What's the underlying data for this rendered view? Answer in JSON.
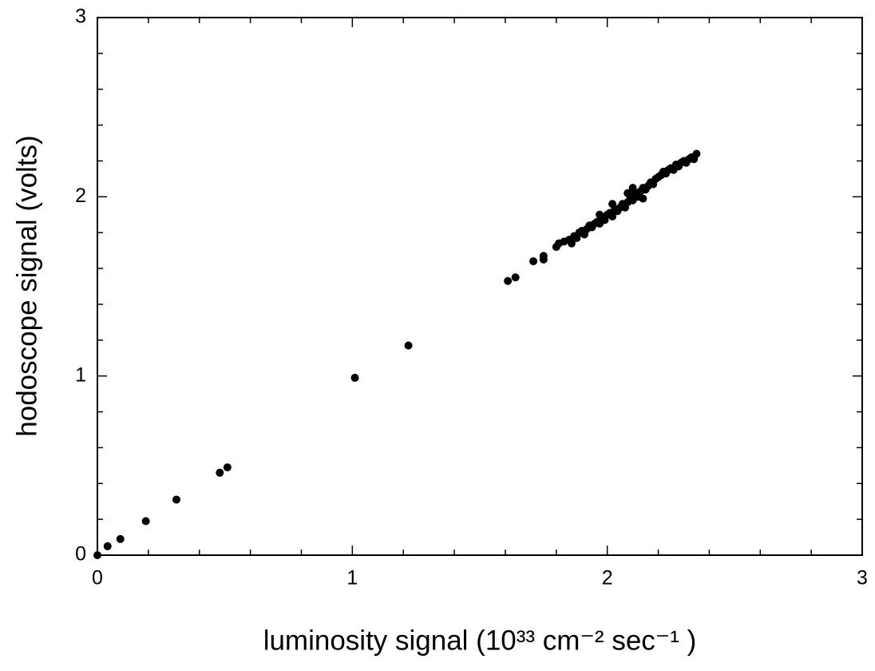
{
  "chart_data": {
    "type": "scatter",
    "x_label": "luminosity signal (10³³ cm⁻² sec⁻¹ )",
    "y_label": "hodoscope signal (volts)",
    "color": "#000000",
    "x": [
      0,
      0.04,
      0.09,
      0.19,
      0.31,
      0.48,
      0.51,
      1.01,
      1.22,
      1.61,
      1.64,
      1.71,
      1.75,
      1.75,
      1.8,
      1.81,
      1.83,
      1.85,
      1.86,
      1.87,
      1.88,
      1.89,
      1.9,
      1.91,
      1.92,
      1.93,
      1.94,
      1.95,
      1.96,
      1.97,
      1.98,
      1.99,
      2.0,
      2.01,
      2.02,
      2.03,
      2.04,
      2.05,
      2.06,
      2.07,
      2.08,
      2.09,
      2.1,
      2.11,
      2.12,
      2.13,
      2.14,
      2.15,
      2.16,
      2.17,
      2.18,
      2.19,
      2.2,
      2.21,
      2.22,
      2.23,
      2.24,
      2.25,
      2.26,
      2.27,
      2.28,
      2.29,
      2.3,
      2.31,
      2.32,
      2.33,
      2.34,
      2.35,
      2.1,
      2.08,
      2.14,
      2.02,
      1.97
    ],
    "values": [
      0,
      0.05,
      0.09,
      0.19,
      0.31,
      0.46,
      0.49,
      0.99,
      1.17,
      1.53,
      1.55,
      1.64,
      1.67,
      1.65,
      1.72,
      1.74,
      1.75,
      1.76,
      1.74,
      1.78,
      1.77,
      1.8,
      1.81,
      1.79,
      1.82,
      1.84,
      1.83,
      1.85,
      1.86,
      1.85,
      1.88,
      1.87,
      1.9,
      1.91,
      1.89,
      1.93,
      1.92,
      1.94,
      1.96,
      1.94,
      1.97,
      1.99,
      1.98,
      2.02,
      2.0,
      2.03,
      2.05,
      2.04,
      2.06,
      2.08,
      2.07,
      2.1,
      2.11,
      2.12,
      2.14,
      2.13,
      2.15,
      2.16,
      2.15,
      2.18,
      2.17,
      2.19,
      2.2,
      2.19,
      2.21,
      2.22,
      2.21,
      2.24,
      2.05,
      2.02,
      1.99,
      1.96,
      1.9
    ],
    "xlim": [
      0,
      3
    ],
    "ylim": [
      0,
      3
    ],
    "xticks": [
      0,
      1,
      2,
      3
    ],
    "yticks": [
      0,
      1,
      2,
      3
    ],
    "xminorticks": [
      0.2,
      0.4,
      0.6,
      0.8,
      1.2,
      1.4,
      1.6,
      1.8,
      2.2,
      2.4,
      2.6,
      2.8
    ],
    "yminorticks": [
      0.2,
      0.4,
      0.6,
      0.8,
      1.2,
      1.4,
      1.6,
      1.8,
      2.2,
      2.4,
      2.6,
      2.8
    ],
    "grid": false
  }
}
